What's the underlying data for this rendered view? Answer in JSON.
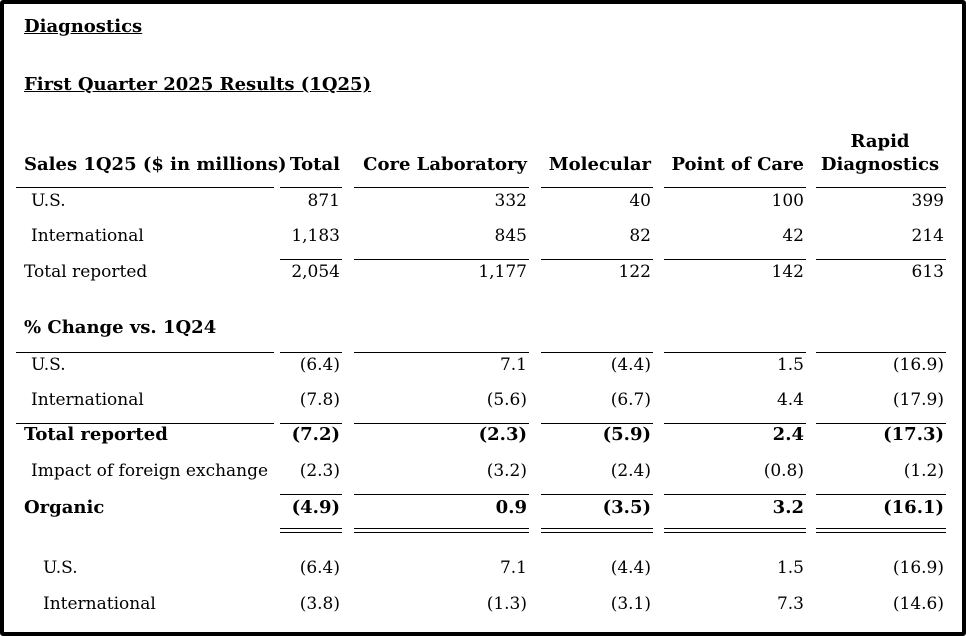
{
  "segment_title": "Diagnostics",
  "section_title": "First Quarter 2025 Results (1Q25)",
  "headers": {
    "label": "Sales 1Q25 ($ in millions)",
    "total": "Total",
    "core_lab": "Core Laboratory",
    "molecular": "Molecular",
    "point_of_care": "Point of Care",
    "rapid_line1": "Rapid",
    "rapid_line2": "Diagnostics"
  },
  "sales": [
    {
      "label": "U.S.",
      "values": [
        "871",
        "332",
        "40",
        "100",
        "399"
      ]
    },
    {
      "label": "International",
      "values": [
        "1,183",
        "845",
        "82",
        "42",
        "214"
      ]
    },
    {
      "label": "Total reported",
      "values": [
        "2,054",
        "1,177",
        "122",
        "142",
        "613"
      ]
    }
  ],
  "pct_title": "% Change vs. 1Q24",
  "pct": [
    {
      "label": "U.S.",
      "values": [
        "(6.4)",
        "7.1",
        "(4.4)",
        "1.5",
        "(16.9)"
      ]
    },
    {
      "label": "International",
      "values": [
        "(7.8)",
        "(5.6)",
        "(6.7)",
        "4.4",
        "(17.9)"
      ]
    },
    {
      "label": "Total reported",
      "values": [
        "(7.2)",
        "(2.3)",
        "(5.9)",
        "2.4",
        "(17.3)"
      ]
    },
    {
      "label": "Impact of foreign exchange",
      "values": [
        "(2.3)",
        "(3.2)",
        "(2.4)",
        "(0.8)",
        "(1.2)"
      ]
    },
    {
      "label": "Organic",
      "values": [
        "(4.9)",
        "0.9",
        "(3.5)",
        "3.2",
        "(16.1)"
      ]
    }
  ],
  "organic_split": [
    {
      "label": "U.S.",
      "values": [
        "(6.4)",
        "7.1",
        "(4.4)",
        "1.5",
        "(16.9)"
      ]
    },
    {
      "label": "International",
      "values": [
        "(3.8)",
        "(1.3)",
        "(3.1)",
        "7.3",
        "(14.6)"
      ]
    }
  ]
}
